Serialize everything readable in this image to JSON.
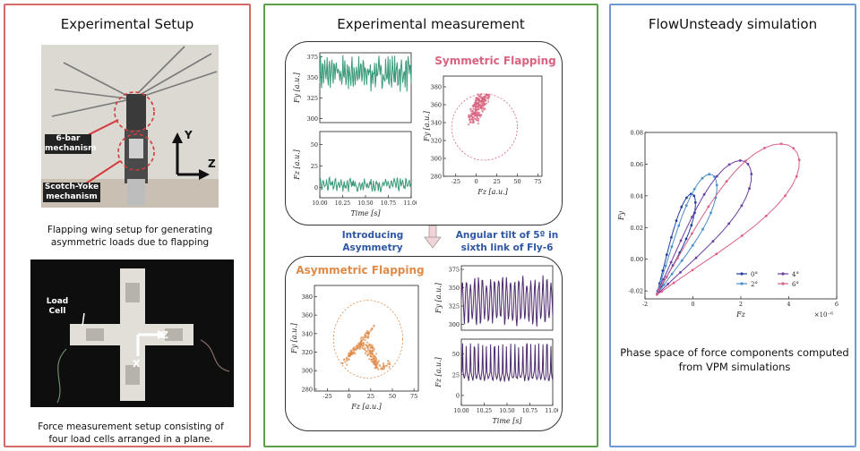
{
  "left": {
    "title": "Experimental Setup",
    "photo1": {
      "label_6bar": "6-bar\nmechanism",
      "label_scotch": "Scotch-Yoke\nmechanism",
      "axis_y": "Y",
      "axis_z": "Z"
    },
    "caption1": "Flapping wing setup for generating asymmetric loads due to flapping",
    "photo2": {
      "label_load": "Load\nCell",
      "axis_z": "Z",
      "axis_x": "X"
    },
    "caption2": "Force measurement setup consisting of four load cells arranged in a plane."
  },
  "middle": {
    "title": "Experimental measurement",
    "sym_title": "Symmetric Flapping",
    "asym_title": "Asymmetric Flapping",
    "intro": "Introducing\nAsymmetry",
    "tilt": "Angular tilt of 5º in\nsixth link of Fly-6",
    "colors": {
      "sym": "#d9627e",
      "asym": "#e08a47",
      "green": "#3a9a7a",
      "purple": "#4e2a6e"
    }
  },
  "right": {
    "title": "FlowUnsteady simulation",
    "caption": "Phase space of force components computed from VPM simulations"
  },
  "chart_data": [
    {
      "name": "sym-fy-time",
      "type": "line",
      "ylabel": "Fy [a.u.]",
      "yticks": [
        "375",
        "350",
        "325",
        "300"
      ],
      "ylim": [
        295,
        380
      ],
      "color": "#3a9a7a"
    },
    {
      "name": "sym-fz-time",
      "type": "line",
      "xlabel": "Time [s]",
      "ylabel": "Fz [a.u.]",
      "xticks": [
        "10.00",
        "10.25",
        "10.50",
        "10.75",
        "11.00"
      ],
      "yticks": [
        "50",
        "25",
        "0"
      ],
      "ylim": [
        -12,
        65
      ],
      "color": "#3a9a7a"
    },
    {
      "name": "sym-phase",
      "type": "scatter",
      "xlabel": "Fz [a.u.]",
      "ylabel": "Fy [a.u.]",
      "xticks": [
        "-25",
        "0",
        "25",
        "50",
        "75"
      ],
      "yticks": [
        "380",
        "360",
        "340",
        "320",
        "300",
        "280"
      ],
      "xlim": [
        -40,
        80
      ],
      "ylim": [
        280,
        392
      ],
      "color": "#d9627e"
    },
    {
      "name": "asym-phase",
      "type": "scatter",
      "xlabel": "Fz [a.u.]",
      "ylabel": "Fy [a.u.]",
      "xticks": [
        "-25",
        "0",
        "25",
        "50",
        "75"
      ],
      "yticks": [
        "380",
        "360",
        "340",
        "320",
        "300",
        "280"
      ],
      "xlim": [
        -40,
        80
      ],
      "ylim": [
        278,
        392
      ],
      "color": "#e08a47"
    },
    {
      "name": "asym-fy-time",
      "type": "line",
      "ylabel": "Fy [a.u.]",
      "yticks": [
        "375",
        "350",
        "325",
        "300"
      ],
      "ylim": [
        292,
        380
      ],
      "color": "#4e2a6e"
    },
    {
      "name": "asym-fz-time",
      "type": "line",
      "xlabel": "Time [s]",
      "ylabel": "Fz [a.u.]",
      "xticks": [
        "10.00",
        "10.25",
        "10.50",
        "10.75",
        "11.00"
      ],
      "yticks": [
        "50",
        "25",
        "0"
      ],
      "ylim": [
        -12,
        68
      ],
      "color": "#4e2a6e"
    },
    {
      "name": "vpm-phase",
      "type": "line",
      "xlabel": "Fz",
      "ylabel": "Fy",
      "xscale_label": "×10⁻⁶",
      "xticks": [
        "-2",
        "0",
        "2",
        "4",
        "6"
      ],
      "yticks": [
        "0.08",
        "0.06",
        "0.04",
        "0.02",
        "0.00",
        "-0.02"
      ],
      "xlim": [
        -2,
        6
      ],
      "ylim": [
        -0.025,
        0.08
      ],
      "legend": [
        "0°",
        "2°",
        "4°",
        "6°"
      ],
      "colors": [
        "#2340a0",
        "#4a90c8",
        "#6a3fa0",
        "#d9628a"
      ],
      "loops": [
        {
          "label": "0°",
          "tip": [
            0.05,
            0.04
          ],
          "width": 0.6
        },
        {
          "label": "2°",
          "tip": [
            0.9,
            0.052
          ],
          "width": 1.0
        },
        {
          "label": "4°",
          "tip": [
            2.3,
            0.06
          ],
          "width": 1.5
        },
        {
          "label": "6°",
          "tip": [
            4.2,
            0.07
          ],
          "width": 2.4
        }
      ]
    }
  ]
}
